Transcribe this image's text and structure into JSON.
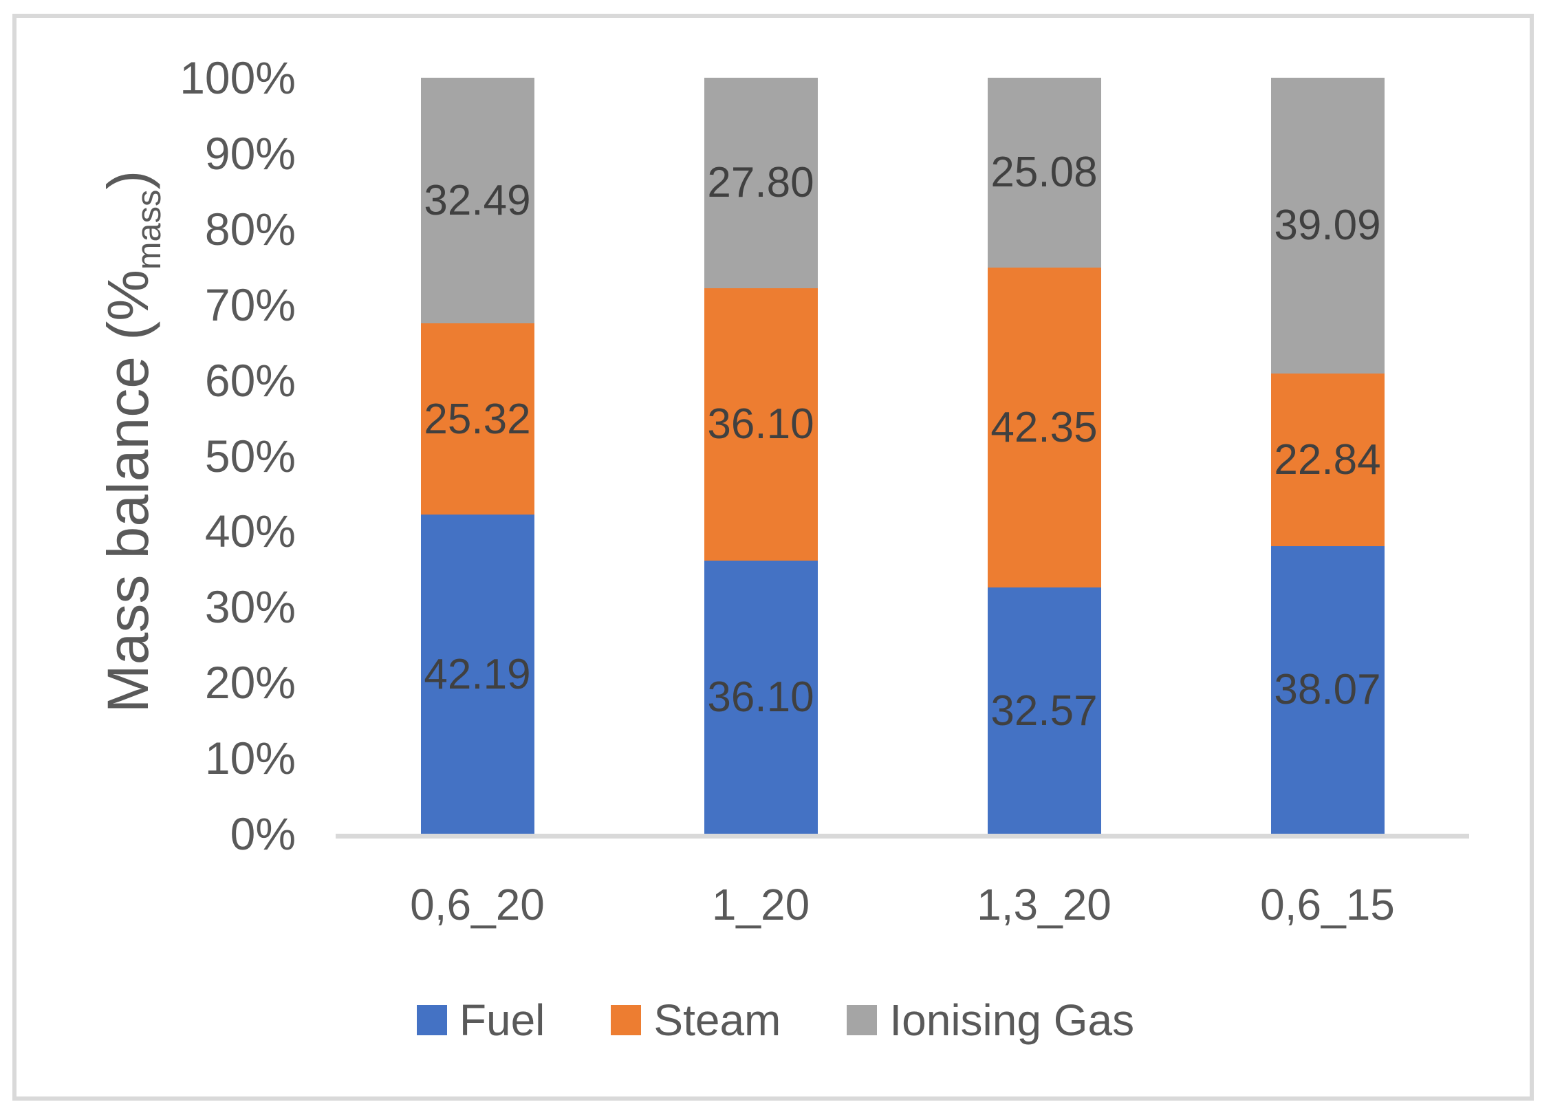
{
  "chart_data": {
    "type": "bar",
    "stacked": true,
    "ylabel_prefix": "Mass balance (%",
    "ylabel_sub": "mass",
    "ylabel_suffix": ")",
    "categories": [
      "0,6_20",
      "1_20",
      "1,3_20",
      "0,6_15"
    ],
    "series": [
      {
        "name": "Fuel",
        "color": "#4472C4",
        "values": [
          42.19,
          36.1,
          32.57,
          38.07
        ],
        "labels": [
          "42.19",
          "36.10",
          "32.57",
          "38.07"
        ]
      },
      {
        "name": "Steam",
        "color": "#ED7D31",
        "values": [
          25.32,
          36.1,
          42.35,
          22.84
        ],
        "labels": [
          "25.32",
          "36.10",
          "42.35",
          "22.84"
        ]
      },
      {
        "name": "Ionising Gas",
        "color": "#A5A5A5",
        "values": [
          32.49,
          27.8,
          25.08,
          39.09
        ],
        "labels": [
          "32.49",
          "27.80",
          "25.08",
          "39.09"
        ]
      }
    ],
    "yticks": [
      "100%",
      "90%",
      "80%",
      "70%",
      "60%",
      "50%",
      "40%",
      "30%",
      "20%",
      "10%",
      "0%"
    ],
    "ylim": [
      0,
      100
    ],
    "grid": false,
    "legend_position": "bottom",
    "axis_line_color": "#D9D9D9",
    "tick_text_color": "#595959",
    "data_label_color": "#404040",
    "border_color": "#D9D9D9"
  }
}
